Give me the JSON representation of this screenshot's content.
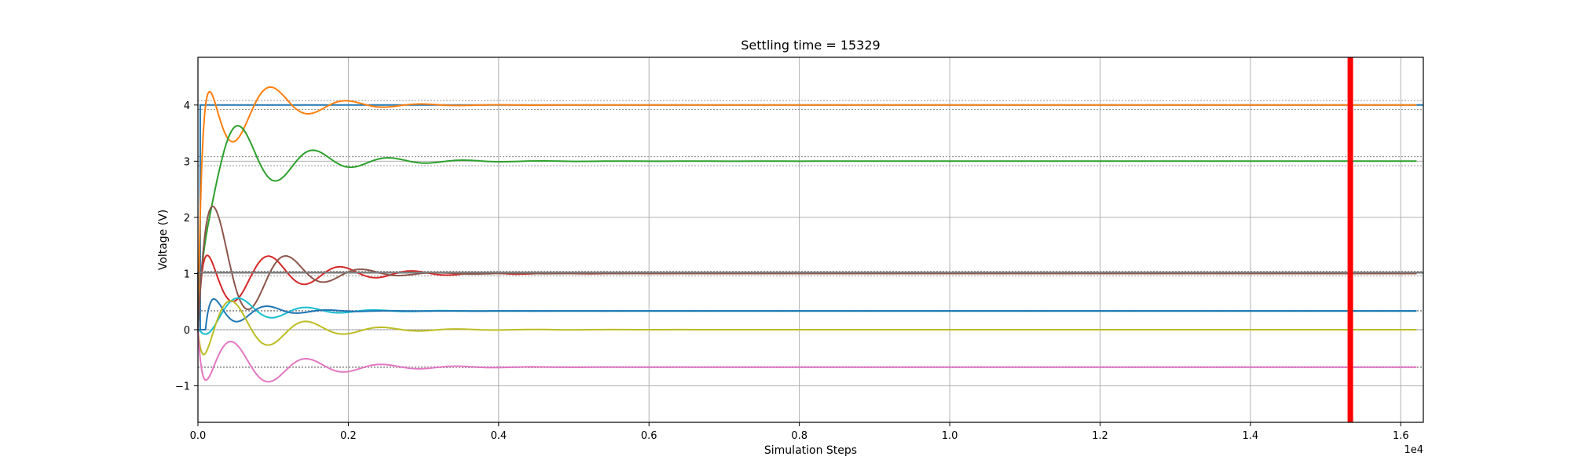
{
  "chart_data": {
    "type": "line",
    "title": "Settling time = 15329",
    "xlabel": "Simulation Steps",
    "ylabel": "Voltage (V)",
    "x_scale_label": "1e4",
    "xlim": [
      0,
      16300
    ],
    "ylim": [
      -1.65,
      4.85
    ],
    "xticks": [
      0,
      2000,
      4000,
      6000,
      8000,
      10000,
      12000,
      14000,
      16000
    ],
    "xtick_labels": [
      "0.0",
      "0.2",
      "0.4",
      "0.6",
      "0.8",
      "1.0",
      "1.2",
      "1.4",
      "1.6"
    ],
    "yticks": [
      -1,
      0,
      1,
      2,
      3,
      4
    ],
    "ytick_labels": [
      "−1",
      "0",
      "1",
      "2",
      "3",
      "4"
    ],
    "grid": true,
    "settling_time": 15329,
    "settling_color": "#ff0000",
    "tolerance_bands": [
      {
        "value": 4.0,
        "band": 0.08,
        "color": "#888888"
      },
      {
        "value": 3.0,
        "band": 0.08,
        "color": "#888888"
      },
      {
        "value": 1.0,
        "band": 0.04,
        "color": "#888888"
      },
      {
        "value": 0.333,
        "band": 0.01,
        "color": "#888888"
      },
      {
        "value": 0.0,
        "band": 0.0,
        "color": "#888888"
      },
      {
        "value": -0.667,
        "band": 0.01,
        "color": "#888888"
      }
    ],
    "series": [
      {
        "color": "#1f77b4",
        "kind": "step",
        "start": 0,
        "final": 4.0,
        "step_at": 30
      },
      {
        "color": "#ff7f0e",
        "kind": "osc",
        "start": 0,
        "final": 4.0,
        "amp": 1.3,
        "period": 1000,
        "tau": 700,
        "phase": 1.57,
        "delay": 0
      },
      {
        "color": "#2ca02c",
        "kind": "osc",
        "start": 0,
        "final": 3.0,
        "amp": -1.2,
        "period": 1000,
        "tau": 850,
        "phase": 1.2,
        "delay": 0
      },
      {
        "color": "#d62728",
        "kind": "osc",
        "start": 0,
        "final": 1.0,
        "amp": 0.8,
        "period": 950,
        "tau": 1000,
        "phase": 1.5,
        "delay": 0
      },
      {
        "color": "#8c564b",
        "kind": "osc",
        "start": 0,
        "final": 1.0,
        "amp": 1.7,
        "period": 1000,
        "tau": 700,
        "phase": 0.3,
        "delay": 0
      },
      {
        "color": "#17becf",
        "kind": "osc",
        "start": 0,
        "final": 0.333,
        "amp": -0.5,
        "period": 900,
        "tau": 700,
        "phase": 0.8,
        "delay": 0
      },
      {
        "color": "#1f77b4",
        "kind": "osc",
        "start": 0,
        "final": 0.333,
        "amp": 0.45,
        "period": 800,
        "tau": 500,
        "phase": 1.2,
        "delay": 100
      },
      {
        "color": "#bcbd22",
        "kind": "osc",
        "start": 0,
        "final": 0.0,
        "amp": -0.9,
        "period": 1000,
        "tau": 800,
        "phase": 1.8,
        "delay": 0
      },
      {
        "color": "#e377c2",
        "kind": "osc",
        "start": 0,
        "final": -0.667,
        "amp": -0.75,
        "period": 1000,
        "tau": 900,
        "phase": 1.8,
        "delay": 0
      },
      {
        "color": "#7f7f7f",
        "kind": "flat",
        "start": 0,
        "final": 1.02
      }
    ]
  }
}
